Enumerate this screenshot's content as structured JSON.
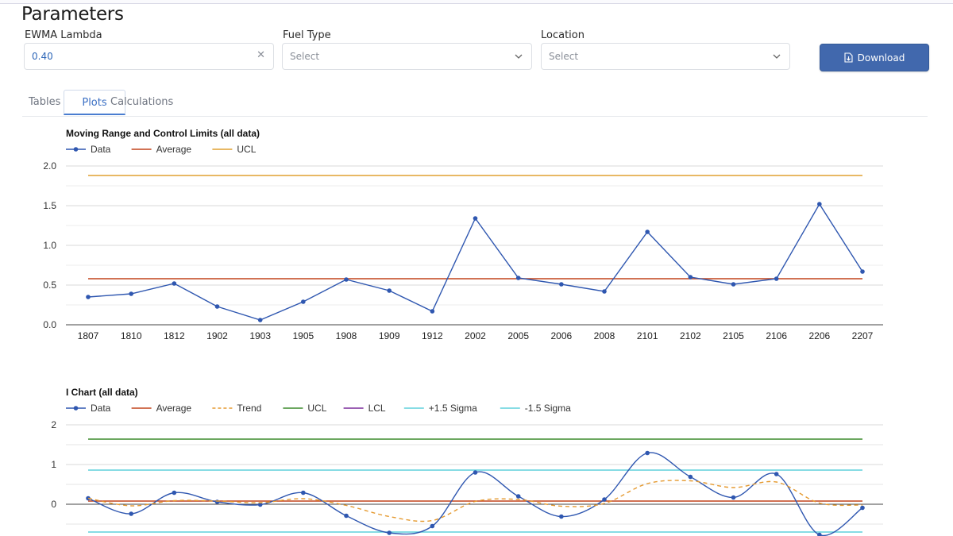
{
  "page": {
    "title": "Parameters"
  },
  "params": {
    "lambda": {
      "label": "EWMA Lambda",
      "value": "0.40"
    },
    "fuel": {
      "label": "Fuel Type",
      "placeholder": "Select"
    },
    "location": {
      "label": "Location",
      "placeholder": "Select"
    },
    "download_label": "Download"
  },
  "tabs": [
    {
      "label": "Tables",
      "active": false
    },
    {
      "label": "Plots",
      "active": true
    },
    {
      "label": "Calculations",
      "active": false
    }
  ],
  "colors": {
    "data": "#2f57b0",
    "average": "#c2441c",
    "ucl_range": "#e0a030",
    "trend": "#e59a30",
    "ucl_i": "#3a8a2a",
    "lcl": "#7a2a9a",
    "sigma": "#5fd0dc"
  },
  "chart_data": [
    {
      "type": "line",
      "title": "Moving Range and Control Limits (all data)",
      "legend": [
        "Data",
        "Average",
        "UCL"
      ],
      "legend_position": "top-left",
      "categories": [
        "1807",
        "1810",
        "1812",
        "1902",
        "1903",
        "1905",
        "1908",
        "1909",
        "1912",
        "2002",
        "2005",
        "2006",
        "2008",
        "2101",
        "2102",
        "2105",
        "2106",
        "2206",
        "2207"
      ],
      "series": [
        {
          "name": "Data",
          "values": [
            0.35,
            0.39,
            0.52,
            0.23,
            0.06,
            0.29,
            0.57,
            0.43,
            0.17,
            1.34,
            0.59,
            0.51,
            0.42,
            1.17,
            0.6,
            0.51,
            0.58,
            1.52,
            0.67
          ]
        },
        {
          "name": "Average",
          "value": 0.58
        },
        {
          "name": "UCL",
          "value": 1.88
        }
      ],
      "yticks": [
        "0.0",
        "0.5",
        "1.0",
        "1.5",
        "2.0"
      ],
      "ylim": [
        0,
        2.0
      ],
      "grid": true
    },
    {
      "type": "line",
      "title": "I Chart (all data)",
      "legend": [
        "Data",
        "Average",
        "Trend",
        "UCL",
        "LCL",
        "+1.5 Sigma",
        "-1.5 Sigma"
      ],
      "legend_position": "top-left",
      "categories": [
        "1807",
        "1810",
        "1812",
        "1902",
        "1903",
        "1905",
        "1908",
        "1909",
        "1912",
        "2002",
        "2005",
        "2006",
        "2008",
        "2101",
        "2102",
        "2105",
        "2106",
        "2206",
        "2207"
      ],
      "series": [
        {
          "name": "Data",
          "values": [
            0.15,
            -0.24,
            0.29,
            0.06,
            -0.01,
            0.29,
            -0.29,
            -0.72,
            -0.55,
            0.8,
            0.2,
            -0.31,
            0.12,
            1.29,
            0.69,
            0.17,
            0.76,
            -0.77,
            -0.09
          ]
        },
        {
          "name": "Average",
          "value": 0.08
        },
        {
          "name": "Trend",
          "values": [
            0.15,
            -0.04,
            0.09,
            0.08,
            0.04,
            0.14,
            -0.03,
            -0.31,
            -0.41,
            0.07,
            0.12,
            -0.05,
            0.02,
            0.52,
            0.59,
            0.42,
            0.56,
            0.03,
            -0.02
          ]
        },
        {
          "name": "UCL",
          "value": 1.64
        },
        {
          "name": "+1.5 Sigma",
          "value": 0.86
        },
        {
          "name": "-1.5 Sigma",
          "value": -0.7
        }
      ],
      "yticks": [
        "2",
        "1",
        "0"
      ],
      "ylim": [
        -0.8,
        2
      ],
      "grid": true
    }
  ]
}
